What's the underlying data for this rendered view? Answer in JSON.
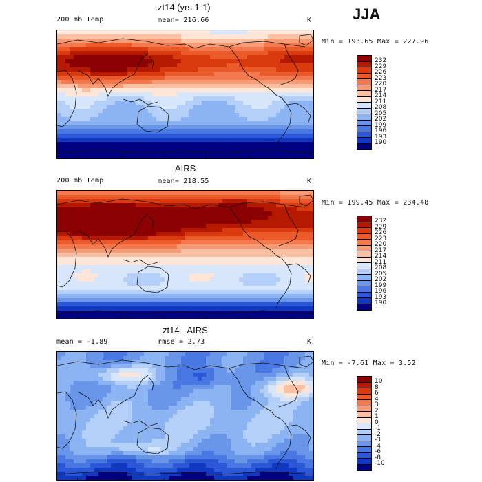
{
  "season": "JJA",
  "chart_data": [
    {
      "type": "heatmap",
      "title": "zt14 (yrs 1-1)",
      "variable": "200 mb Temp",
      "mean_label": "mean= 216.66",
      "units": "K",
      "range_label": "Min = 193.65 Max = 227.96",
      "min": 193.65,
      "max": 227.96,
      "levels": [
        "232",
        "229",
        "226",
        "223",
        "220",
        "217",
        "214",
        "211",
        "208",
        "205",
        "202",
        "199",
        "196",
        "193",
        "190"
      ],
      "colors": [
        "#8b0000",
        "#b51a00",
        "#d93a0e",
        "#ea5a2a",
        "#f27a4e",
        "#f59b76",
        "#f9c0a3",
        "#fde6d8",
        "#d7e6fb",
        "#b5d0f8",
        "#8db4f2",
        "#6a96ea",
        "#4a78e2",
        "#2a58d6",
        "#1038c0",
        "#000080"
      ],
      "zonal_bands": [
        0.95,
        0.92,
        0.88,
        0.82,
        0.72,
        0.62,
        0.55,
        0.5,
        0.48,
        0.5,
        0.55,
        0.62,
        0.7,
        0.78,
        0.86,
        0.92
      ]
    },
    {
      "type": "heatmap",
      "title": "AIRS",
      "variable": "200 mb Temp",
      "mean_label": "mean= 218.55",
      "units": "K",
      "range_label": "Min = 199.45 Max = 234.48",
      "min": 199.45,
      "max": 234.48,
      "levels": [
        "232",
        "229",
        "226",
        "223",
        "220",
        "217",
        "214",
        "211",
        "208",
        "205",
        "202",
        "199",
        "196",
        "193",
        "190"
      ],
      "colors": [
        "#8b0000",
        "#b51a00",
        "#d93a0e",
        "#ea5a2a",
        "#f27a4e",
        "#f59b76",
        "#f9c0a3",
        "#fde6d8",
        "#d7e6fb",
        "#b5d0f8",
        "#8db4f2",
        "#6a96ea",
        "#4a78e2",
        "#2a58d6",
        "#1038c0",
        "#000080"
      ]
    },
    {
      "type": "heatmap",
      "title": "zt14 - AIRS",
      "variable": "",
      "mean_label": "mean =   -1.89",
      "rmse_label": "rmse =    2.73",
      "units": "K",
      "range_label": "Min =  -7.61 Max =    3.52",
      "min": -7.61,
      "max": 3.52,
      "levels": [
        "10",
        "8",
        "6",
        "4",
        "3",
        "2",
        "1",
        "0",
        "-1",
        "-2",
        "-3",
        "-4",
        "-6",
        "-8",
        "-10"
      ],
      "colors": [
        "#8b0000",
        "#b51a00",
        "#d93a0e",
        "#ea5a2a",
        "#f27a4e",
        "#f59b76",
        "#f9c0a3",
        "#fde6d8",
        "#d7e6fb",
        "#b5d0f8",
        "#8db4f2",
        "#6a96ea",
        "#4a78e2",
        "#2a58d6",
        "#1038c0",
        "#000080"
      ]
    }
  ]
}
